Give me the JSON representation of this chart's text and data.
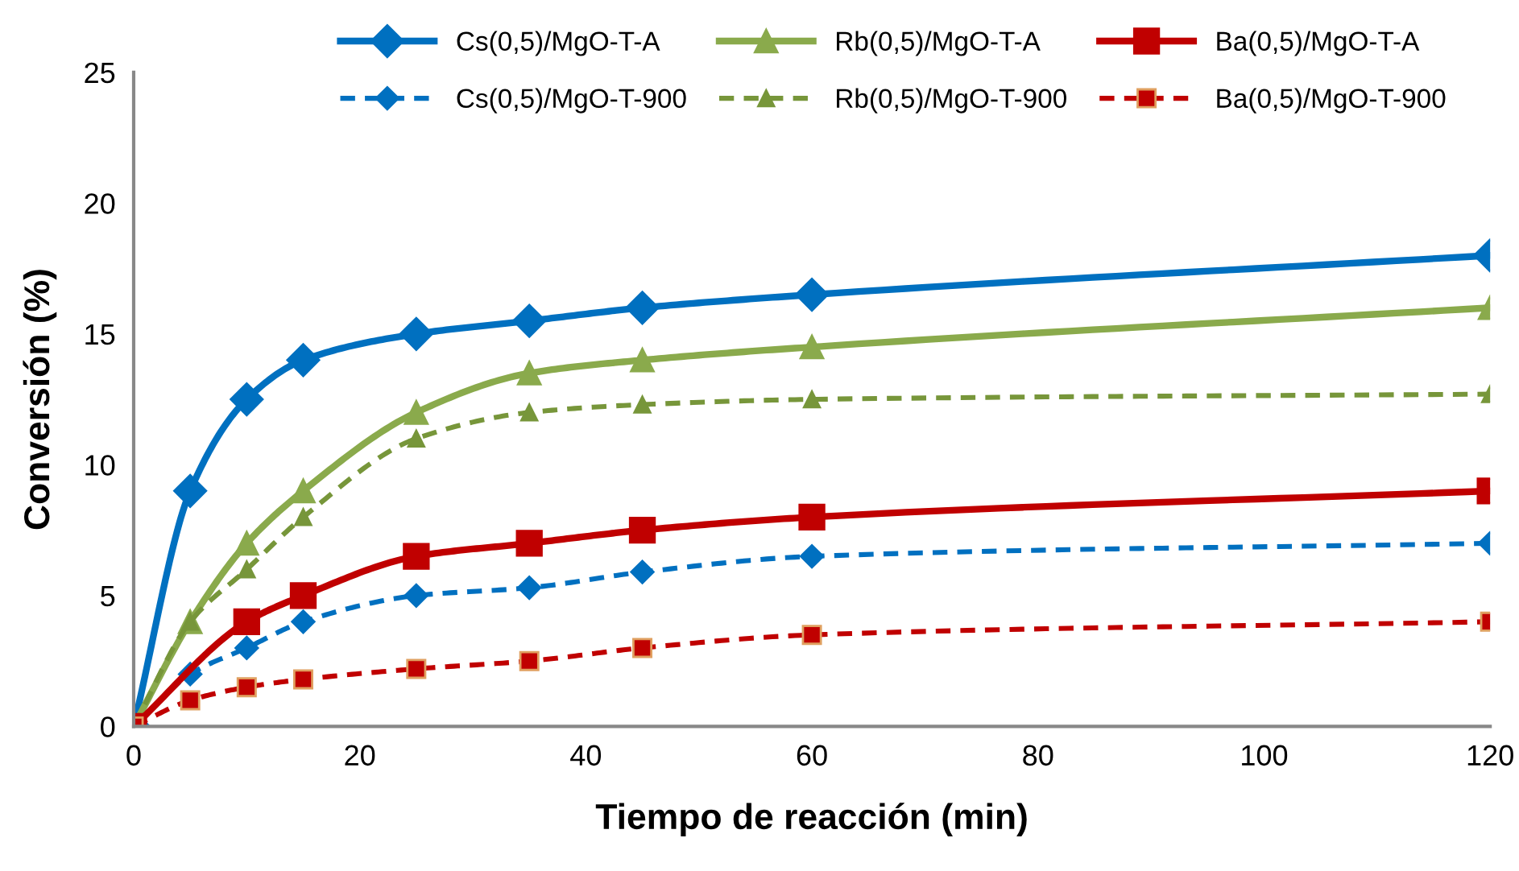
{
  "chart_data": {
    "type": "line",
    "xlabel": "Tiempo de reacción (min)",
    "ylabel": "Conversión (%)",
    "x": [
      0,
      5,
      10,
      15,
      25,
      35,
      45,
      60,
      120
    ],
    "series": [
      {
        "name": "Cs(0,5)/MgO-T-A",
        "color": "#0070c0",
        "marker": "diamond",
        "line_style": "solid",
        "values": [
          0,
          9,
          12.5,
          14,
          15,
          15.5,
          16,
          16.5,
          18
        ]
      },
      {
        "name": "Cs(0,5)/MgO-T-900",
        "color": "#0070c0",
        "marker": "diamond",
        "line_style": "dashed",
        "values": [
          0,
          2,
          3,
          4,
          5,
          5.3,
          5.9,
          6.5,
          7
        ]
      },
      {
        "name": "Rb(0,5)/MgO-T-A",
        "color": "#8aaa4c",
        "marker": "triangle",
        "line_style": "solid",
        "values": [
          0,
          4,
          7,
          9,
          12,
          13.5,
          14,
          14.5,
          16
        ]
      },
      {
        "name": "Rb(0,5)/MgO-T-900",
        "color": "#77963a",
        "marker": "triangle",
        "line_style": "dashed",
        "values": [
          0,
          4,
          6,
          8,
          11,
          12,
          12.3,
          12.5,
          12.7
        ]
      },
      {
        "name": "Ba(0,5)/MgO-T-A",
        "color": "#c00000",
        "marker": "square",
        "line_style": "solid",
        "values": [
          0,
          null,
          4,
          5,
          6.5,
          7,
          7.5,
          8,
          9
        ]
      },
      {
        "name": "Ba(0,5)/MgO-T-900",
        "color": "#c00000",
        "marker": "square",
        "line_style": "dashed",
        "values": [
          0,
          1,
          1.5,
          1.8,
          2.2,
          2.5,
          3,
          3.5,
          4
        ]
      }
    ],
    "xlim": [
      0,
      120
    ],
    "ylim": [
      0,
      25
    ],
    "xticks": [
      0,
      20,
      40,
      60,
      80,
      100,
      120
    ],
    "yticks": [
      0,
      5,
      10,
      15,
      20,
      25
    ],
    "grid": false,
    "legend": "top"
  }
}
